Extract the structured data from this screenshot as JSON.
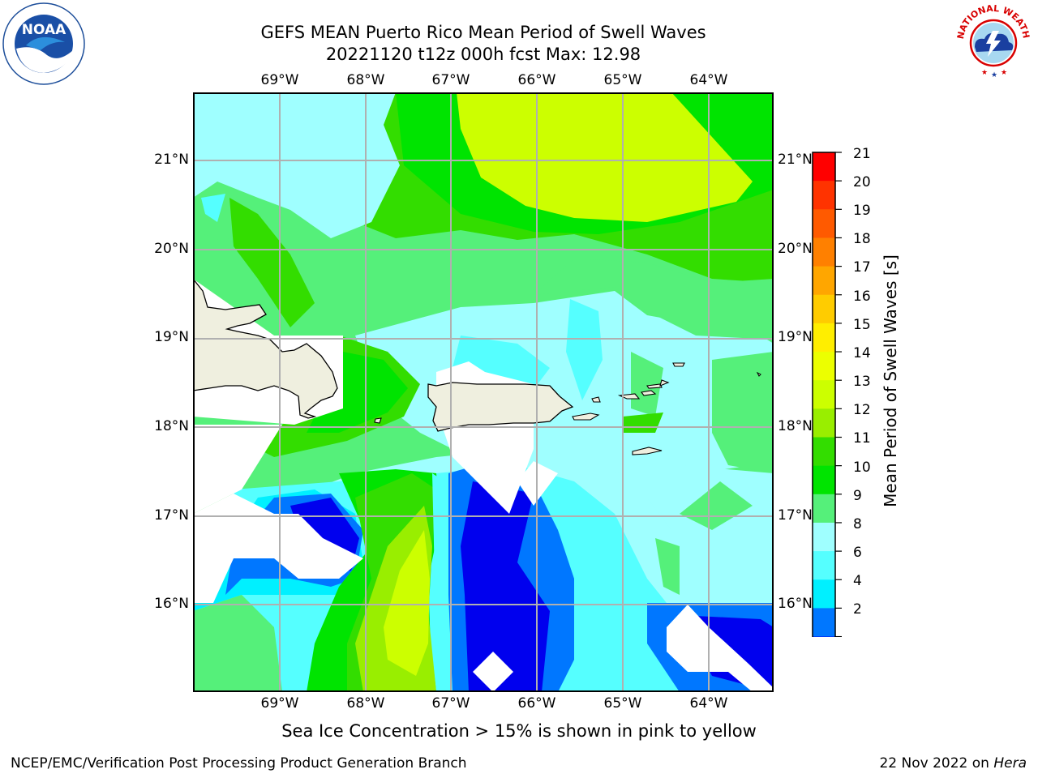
{
  "title": {
    "line1": "GEFS MEAN Puerto Rico Mean Period of Swell Waves",
    "line2": "20221120 t12z 000h fcst   Max: 12.98"
  },
  "map": {
    "lon_labels": [
      "69°W",
      "68°W",
      "67°W",
      "66°W",
      "65°W",
      "64°W"
    ],
    "lat_labels": [
      "21°N",
      "20°N",
      "19°N",
      "18°N",
      "17°N",
      "16°N"
    ],
    "land_color": "#efefdf",
    "grid_color": "#b0b0b0"
  },
  "colorbar": {
    "title": "Mean Period of Swell Waves [s]",
    "ticks": [
      "21",
      "20",
      "19",
      "18",
      "17",
      "16",
      "15",
      "14",
      "13",
      "12",
      "11",
      "10",
      "9",
      "8",
      "6",
      "4",
      "2"
    ],
    "colors": [
      "#ff0000",
      "#ff3300",
      "#ff5a00",
      "#ff8000",
      "#ffa600",
      "#ffcc00",
      "#ffee00",
      "#ecff00",
      "#ccff00",
      "#99ee00",
      "#33dd00",
      "#00e400",
      "#55f07a",
      "#9fffff",
      "#55ffff",
      "#00f0ff",
      "#0077ff",
      "#0000ee"
    ]
  },
  "note": "Sea Ice Concentration > 15% is shown in pink to yellow",
  "footer": {
    "left": "NCEP/EMC/Verification Post Processing Product Generation Branch",
    "right_prefix": "22 Nov 2022 on ",
    "right_machine": "Hera"
  },
  "logos": {
    "left": "NOAA",
    "right_arc": "NATIONAL WEATHER SERVICE"
  }
}
